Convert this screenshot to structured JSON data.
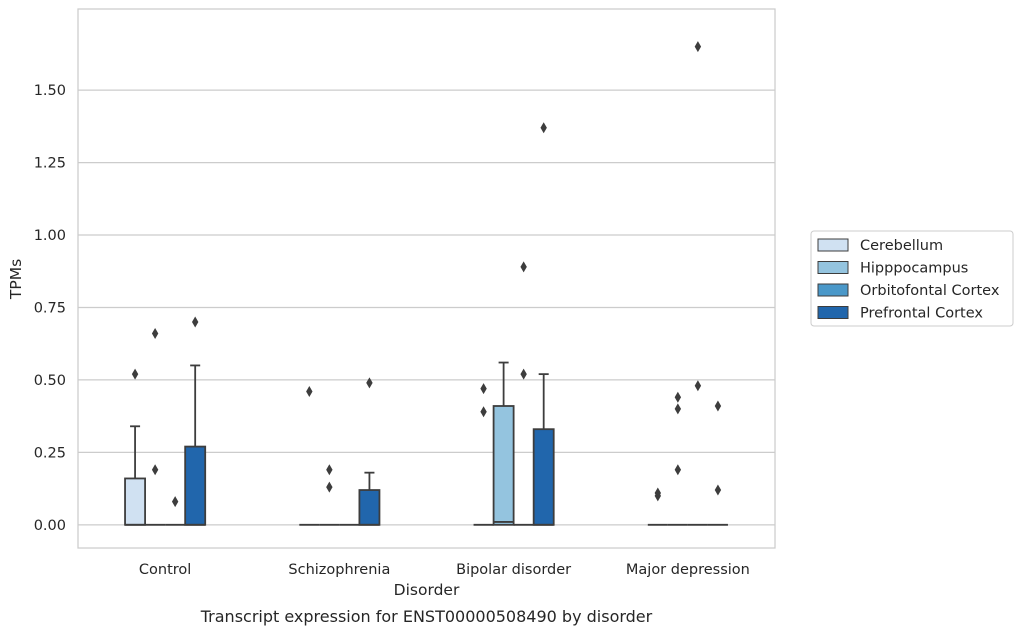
{
  "chart_data": {
    "type": "box",
    "caption": "Transcript expression for ENST00000508490 by disorder",
    "xlabel": "Disorder",
    "ylabel": "TPMs",
    "ylim": [
      -0.08,
      1.78
    ],
    "yticks": [
      0.0,
      0.25,
      0.5,
      0.75,
      1.0,
      1.25,
      1.5
    ],
    "ytick_labels": [
      "0.00",
      "0.25",
      "0.50",
      "0.75",
      "1.00",
      "1.25",
      "1.50"
    ],
    "grid": "horizontal",
    "legend_position": "right",
    "categories": [
      "Control",
      "Schizophrenia",
      "Bipolar disorder",
      "Major depression"
    ],
    "series": [
      {
        "name": "Cerebellum",
        "color": "#d0e1f2",
        "boxes": [
          {
            "q1": 0.0,
            "median": 0.0,
            "q3": 0.16,
            "whisker_low": 0.0,
            "whisker_high": 0.34,
            "outliers": [
              0.52
            ]
          },
          {
            "q1": 0.0,
            "median": 0.0,
            "q3": 0.0,
            "whisker_low": 0.0,
            "whisker_high": 0.0,
            "outliers": [
              0.46
            ]
          },
          {
            "q1": 0.0,
            "median": 0.0,
            "q3": 0.0,
            "whisker_low": 0.0,
            "whisker_high": 0.0,
            "outliers": [
              0.39,
              0.47
            ]
          },
          {
            "q1": 0.0,
            "median": 0.0,
            "q3": 0.0,
            "whisker_low": 0.0,
            "whisker_high": 0.0,
            "outliers": [
              0.1,
              0.11
            ]
          }
        ]
      },
      {
        "name": "Hipppocampus",
        "color": "#94c4df",
        "boxes": [
          {
            "q1": 0.0,
            "median": 0.0,
            "q3": 0.0,
            "whisker_low": 0.0,
            "whisker_high": 0.0,
            "outliers": [
              0.19,
              0.66
            ]
          },
          {
            "q1": 0.0,
            "median": 0.0,
            "q3": 0.0,
            "whisker_low": 0.0,
            "whisker_high": 0.0,
            "outliers": [
              0.13,
              0.19
            ]
          },
          {
            "q1": 0.0,
            "median": 0.01,
            "q3": 0.41,
            "whisker_low": 0.0,
            "whisker_high": 0.56,
            "outliers": []
          },
          {
            "q1": 0.0,
            "median": 0.0,
            "q3": 0.0,
            "whisker_low": 0.0,
            "whisker_high": 0.0,
            "outliers": [
              0.19,
              0.4,
              0.44
            ]
          }
        ]
      },
      {
        "name": "Orbitofontal Cortex",
        "color": "#4a98c9",
        "boxes": [
          {
            "q1": 0.0,
            "median": 0.0,
            "q3": 0.0,
            "whisker_low": 0.0,
            "whisker_high": 0.0,
            "outliers": [
              0.08
            ]
          },
          {
            "q1": 0.0,
            "median": 0.0,
            "q3": 0.0,
            "whisker_low": 0.0,
            "whisker_high": 0.0,
            "outliers": []
          },
          {
            "q1": 0.0,
            "median": 0.0,
            "q3": 0.0,
            "whisker_low": 0.0,
            "whisker_high": 0.0,
            "outliers": [
              0.52,
              0.89
            ]
          },
          {
            "q1": 0.0,
            "median": 0.0,
            "q3": 0.0,
            "whisker_low": 0.0,
            "whisker_high": 0.0,
            "outliers": [
              0.48,
              1.65
            ]
          }
        ]
      },
      {
        "name": "Prefrontal Cortex",
        "color": "#2166ac",
        "boxes": [
          {
            "q1": 0.0,
            "median": 0.0,
            "q3": 0.27,
            "whisker_low": 0.0,
            "whisker_high": 0.55,
            "outliers": [
              0.7
            ]
          },
          {
            "q1": 0.0,
            "median": 0.0,
            "q3": 0.12,
            "whisker_low": 0.0,
            "whisker_high": 0.18,
            "outliers": [
              0.49
            ]
          },
          {
            "q1": 0.0,
            "median": 0.0,
            "q3": 0.33,
            "whisker_low": 0.0,
            "whisker_high": 0.52,
            "outliers": [
              1.37
            ]
          },
          {
            "q1": 0.0,
            "median": 0.0,
            "q3": 0.0,
            "whisker_low": 0.0,
            "whisker_high": 0.0,
            "outliers": [
              0.12,
              0.41
            ]
          }
        ]
      }
    ]
  }
}
